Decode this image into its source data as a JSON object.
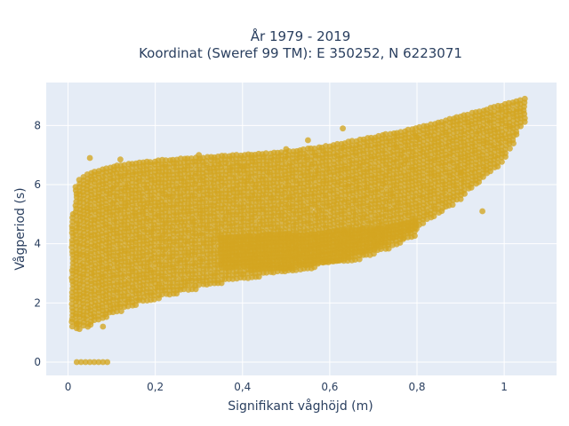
{
  "chart_data": {
    "type": "scatter",
    "title_line1": "År 1979 - 2019",
    "title_line2": "Koordinat (Sweref 99 TM): E 350252, N 6223071",
    "xlabel": "Signifikant våghöjd (m)",
    "ylabel": "Vågperiod (s)",
    "xlim": [
      -0.05,
      1.12
    ],
    "ylim": [
      -0.45,
      9.45
    ],
    "x_ticks": [
      0,
      0.2,
      0.4,
      0.6,
      0.8,
      1
    ],
    "x_tick_labels": [
      "0",
      "0,2",
      "0,4",
      "0,6",
      "0,8",
      "1"
    ],
    "y_ticks": [
      0,
      2,
      4,
      6,
      8
    ],
    "y_tick_labels": [
      "0",
      "2",
      "4",
      "6",
      "8"
    ],
    "grid": true,
    "marker_color": "#d4a520",
    "plot_background": "#e5ecf6",
    "envelope_main": {
      "x": [
        0.01,
        0.02,
        0.05,
        0.1,
        0.15,
        0.2,
        0.3,
        0.4,
        0.5,
        0.6,
        0.7,
        0.8,
        0.9,
        1.0,
        1.05
      ],
      "y_low": [
        1.1,
        1.05,
        1.2,
        1.6,
        1.9,
        2.1,
        2.5,
        2.8,
        3.0,
        3.3,
        3.8,
        4.5,
        5.5,
        6.8,
        8.2
      ],
      "y_high": [
        5.0,
        6.1,
        6.4,
        6.6,
        6.7,
        6.8,
        6.9,
        7.0,
        7.1,
        7.3,
        7.6,
        7.9,
        8.3,
        8.7,
        8.9
      ]
    },
    "envelope_lower_band": {
      "x": [
        0.35,
        0.45,
        0.55,
        0.6,
        0.68,
        0.75,
        0.8
      ],
      "y_low": [
        3.2,
        3.1,
        3.2,
        3.3,
        3.5,
        3.9,
        4.3
      ],
      "y_high": [
        4.2,
        4.3,
        4.3,
        4.4,
        4.5,
        4.6,
        4.8
      ]
    },
    "zero_period_points": {
      "x": [
        0.02,
        0.03,
        0.04,
        0.05,
        0.06,
        0.07,
        0.08,
        0.09
      ],
      "y": [
        0,
        0,
        0,
        0,
        0,
        0,
        0,
        0
      ]
    },
    "outliers": {
      "x": [
        0.05,
        0.12,
        0.3,
        0.5,
        0.63,
        0.7,
        0.77,
        0.8,
        0.9,
        0.95,
        0.55,
        0.4,
        0.02,
        0.08
      ],
      "y": [
        6.9,
        6.85,
        7.0,
        7.2,
        7.9,
        4.3,
        4.2,
        7.6,
        6.4,
        5.1,
        7.5,
        6.6,
        1.3,
        1.2
      ]
    }
  }
}
